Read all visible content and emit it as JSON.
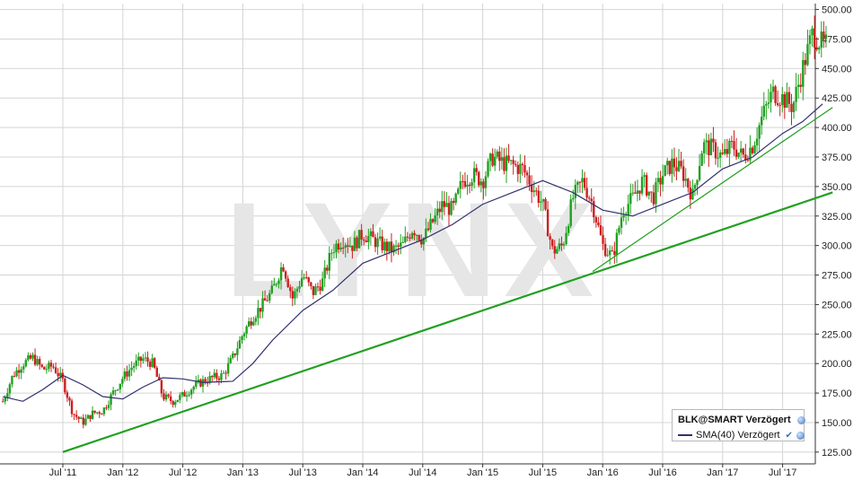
{
  "chart_data": {
    "type": "candlestick",
    "watermark": "LYNX",
    "legend": {
      "symbol_label": "BLK@SMART Verzögert",
      "sma_label": "SMA(40) Verzögert"
    },
    "x_ticks": [
      "Jul '11",
      "Jan '12",
      "Jul '12",
      "Jan '13",
      "Jul '13",
      "Jan '14",
      "Jul '14",
      "Jan '15",
      "Jul '15",
      "Jan '16",
      "Jul '16",
      "Jan '17",
      "Jul '17"
    ],
    "y_ticks": [
      "125.00",
      "150.00",
      "175.00",
      "200.00",
      "225.00",
      "250.00",
      "275.00",
      "300.00",
      "325.00",
      "350.00",
      "375.00",
      "400.00",
      "425.00",
      "450.00",
      "475.00",
      "500.00"
    ],
    "ylim": [
      115,
      505
    ],
    "grid": true,
    "y_axis_side": "right",
    "price_path": [
      [
        "2011-01",
        168
      ],
      [
        "2011-02",
        190
      ],
      [
        "2011-03",
        200
      ],
      [
        "2011-04",
        205
      ],
      [
        "2011-05",
        195
      ],
      [
        "2011-06",
        198
      ],
      [
        "2011-07",
        185
      ],
      [
        "2011-08",
        158
      ],
      [
        "2011-09",
        150
      ],
      [
        "2011-10",
        158
      ],
      [
        "2011-11",
        160
      ],
      [
        "2011-12",
        175
      ],
      [
        "2012-01",
        188
      ],
      [
        "2012-02",
        198
      ],
      [
        "2012-03",
        204
      ],
      [
        "2012-04",
        200
      ],
      [
        "2012-05",
        172
      ],
      [
        "2012-06",
        168
      ],
      [
        "2012-07",
        173
      ],
      [
        "2012-08",
        180
      ],
      [
        "2012-09",
        185
      ],
      [
        "2012-10",
        188
      ],
      [
        "2012-11",
        190
      ],
      [
        "2012-12",
        205
      ],
      [
        "2013-01",
        225
      ],
      [
        "2013-02",
        240
      ],
      [
        "2013-03",
        250
      ],
      [
        "2013-04",
        262
      ],
      [
        "2013-05",
        285
      ],
      [
        "2013-06",
        255
      ],
      [
        "2013-07",
        275
      ],
      [
        "2013-08",
        260
      ],
      [
        "2013-09",
        270
      ],
      [
        "2013-10",
        298
      ],
      [
        "2013-11",
        305
      ],
      [
        "2013-12",
        300
      ],
      [
        "2014-01",
        310
      ],
      [
        "2014-02",
        305
      ],
      [
        "2014-03",
        300
      ],
      [
        "2014-04",
        296
      ],
      [
        "2014-05",
        300
      ],
      [
        "2014-06",
        315
      ],
      [
        "2014-07",
        305
      ],
      [
        "2014-08",
        320
      ],
      [
        "2014-09",
        335
      ],
      [
        "2014-10",
        330
      ],
      [
        "2014-11",
        355
      ],
      [
        "2014-12",
        360
      ],
      [
        "2015-01",
        355
      ],
      [
        "2015-02",
        375
      ],
      [
        "2015-03",
        370
      ],
      [
        "2015-04",
        368
      ],
      [
        "2015-05",
        365
      ],
      [
        "2015-06",
        350
      ],
      [
        "2015-07",
        335
      ],
      [
        "2015-08",
        295
      ],
      [
        "2015-09",
        300
      ],
      [
        "2015-10",
        340
      ],
      [
        "2015-11",
        355
      ],
      [
        "2015-12",
        335
      ],
      [
        "2016-01",
        300
      ],
      [
        "2016-02",
        290
      ],
      [
        "2016-03",
        330
      ],
      [
        "2016-04",
        340
      ],
      [
        "2016-05",
        355
      ],
      [
        "2016-06",
        340
      ],
      [
        "2016-07",
        360
      ],
      [
        "2016-08",
        370
      ],
      [
        "2016-09",
        362
      ],
      [
        "2016-10",
        342
      ],
      [
        "2016-11",
        385
      ],
      [
        "2016-12",
        382
      ],
      [
        "2017-01",
        375
      ],
      [
        "2017-02",
        385
      ],
      [
        "2017-03",
        375
      ],
      [
        "2017-04",
        385
      ],
      [
        "2017-05",
        410
      ],
      [
        "2017-06",
        430
      ],
      [
        "2017-07",
        425
      ],
      [
        "2017-08",
        418
      ],
      [
        "2017-09",
        450
      ],
      [
        "2017-10",
        480
      ],
      [
        "2017-11",
        470
      ]
    ],
    "sma40": [
      [
        "2011-01",
        172
      ],
      [
        "2011-03",
        168
      ],
      [
        "2011-05",
        178
      ],
      [
        "2011-07",
        190
      ],
      [
        "2011-09",
        182
      ],
      [
        "2011-11",
        172
      ],
      [
        "2012-01",
        170
      ],
      [
        "2012-03",
        180
      ],
      [
        "2012-05",
        188
      ],
      [
        "2012-07",
        187
      ],
      [
        "2012-09",
        184
      ],
      [
        "2012-12",
        185
      ],
      [
        "2013-02",
        200
      ],
      [
        "2013-04",
        220
      ],
      [
        "2013-07",
        245
      ],
      [
        "2013-10",
        262
      ],
      [
        "2014-01",
        285
      ],
      [
        "2014-04",
        295
      ],
      [
        "2014-07",
        305
      ],
      [
        "2014-10",
        318
      ],
      [
        "2015-01",
        335
      ],
      [
        "2015-04",
        345
      ],
      [
        "2015-07",
        355
      ],
      [
        "2015-10",
        345
      ],
      [
        "2016-01",
        330
      ],
      [
        "2016-04",
        325
      ],
      [
        "2016-07",
        335
      ],
      [
        "2016-10",
        345
      ],
      [
        "2017-01",
        365
      ],
      [
        "2017-04",
        375
      ],
      [
        "2017-07",
        395
      ],
      [
        "2017-09",
        405
      ],
      [
        "2017-11",
        420
      ]
    ],
    "trend_lines": [
      {
        "from": [
          "2011-07",
          125
        ],
        "to": [
          "2017-12",
          345
        ]
      },
      {
        "from": [
          "2015-12",
          278
        ],
        "to": [
          "2017-12",
          417
        ]
      }
    ],
    "colors": {
      "up": "#20a020",
      "down": "#cc2020",
      "sma": "#30306e",
      "trend": "#20a020",
      "grid": "#d4d4d4",
      "watermark": "#e6e6e6"
    }
  }
}
